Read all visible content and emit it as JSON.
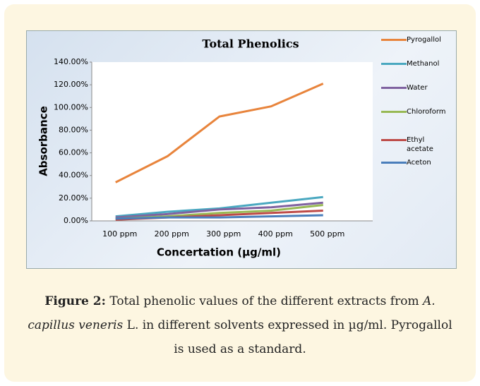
{
  "chart_data": {
    "type": "line",
    "title": "Total Phenolics",
    "ylabel": "Absorbance",
    "xlabel": "Concertation (µg/ml)",
    "categories": [
      "100 ppm",
      "200 ppm",
      "300 ppm",
      "400 ppm",
      "500 ppm"
    ],
    "ylim": [
      0,
      140
    ],
    "yticks": [
      {
        "value": 0,
        "label": "0.00%"
      },
      {
        "value": 20,
        "label": "20.00%"
      },
      {
        "value": 40,
        "label": "40.00%"
      },
      {
        "value": 60,
        "label": "60.00%"
      },
      {
        "value": 80,
        "label": "80.00%"
      },
      {
        "value": 100,
        "label": "100.00%"
      },
      {
        "value": 120,
        "label": "120.00%"
      },
      {
        "value": 140,
        "label": "140.00%"
      }
    ],
    "legend": "right",
    "series": [
      {
        "name": "Pyrogallol",
        "color": "#e8843c",
        "values": [
          34,
          57,
          92,
          101,
          121
        ]
      },
      {
        "name": "Methanol",
        "color": "#4aa8c0",
        "values": [
          4,
          8,
          11,
          16,
          21
        ]
      },
      {
        "name": "Water",
        "color": "#7f62a0",
        "values": [
          3,
          6,
          10,
          12,
          16
        ]
      },
      {
        "name": "Chloroform",
        "color": "#98b954",
        "values": [
          2,
          4,
          7,
          9,
          14
        ]
      },
      {
        "name": "Ethyl acetate",
        "color": "#be4b48",
        "values": [
          1,
          3,
          5,
          7,
          9
        ]
      },
      {
        "name": "Aceton",
        "color": "#4a7ebb",
        "values": [
          2,
          3,
          3,
          4,
          5
        ]
      }
    ],
    "caption": {
      "label": "Figure 2:",
      "text_1": "Total phenolic values of the different extracts from",
      "species": "A. capillus veneris",
      "text_2": "L. in different solvents expressed in µg/ml. Pyrogallol is used as a standard."
    }
  }
}
